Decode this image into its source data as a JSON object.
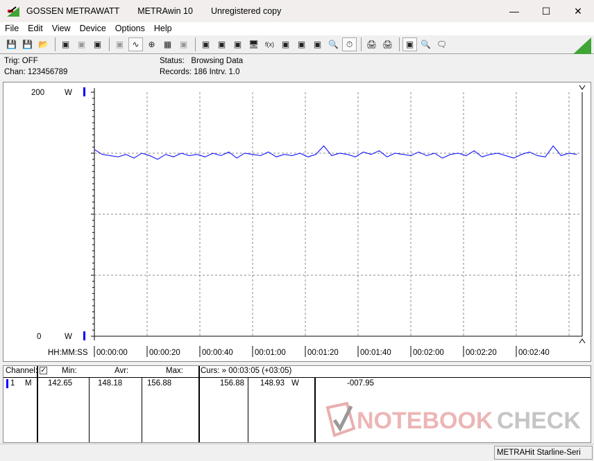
{
  "titlebar": {
    "brand": "GOSSEN METRAWATT",
    "app": "METRAwin 10",
    "license": "Unregistered copy"
  },
  "menu": [
    "File",
    "Edit",
    "View",
    "Device",
    "Options",
    "Help"
  ],
  "toolbar_icons": [
    "save-icon",
    "save-as-icon",
    "open-folder-icon",
    "device-read-icon",
    "device-read-disabled-icon",
    "device-memory-icon",
    "display-icon",
    "waveform-icon",
    "crosshair-icon",
    "table-icon",
    "bars-icon",
    "export-icon",
    "import-icon",
    "settings-icon",
    "monitor-icon",
    "function-icon",
    "device-icon",
    "trigger-icon",
    "signal-icon",
    "search-icon",
    "timer-icon",
    "print-icon",
    "print-preview-icon",
    "zoom-wave-icon",
    "zoom-icon",
    "comment-icon"
  ],
  "info": {
    "trig": "Trig: OFF",
    "chan": "Chan:  123456789",
    "status_label": "Status:",
    "status_value": "Browsing Data",
    "records": "Records: 186  Intrv. 1.0"
  },
  "chart_data": {
    "type": "line",
    "ylim": [
      0,
      200
    ],
    "yunit": "W",
    "ytick_labels": [
      "200",
      "0"
    ],
    "xlabel": "HH:MM:SS",
    "xtick_labels": [
      "00:00:00",
      "00:00:20",
      "00:00:40",
      "00:01:00",
      "00:01:20",
      "00:01:40",
      "00:02:00",
      "00:02:20",
      "00:02:40"
    ],
    "xlim_seconds": [
      0,
      185
    ],
    "grid": true,
    "line_color": "#0000ff",
    "series": [
      {
        "x_step_seconds": 3,
        "values": [
          153,
          149,
          148,
          147,
          149,
          146,
          150,
          148,
          145,
          149,
          147,
          150,
          148,
          149,
          147,
          150,
          148,
          151,
          146,
          150,
          149,
          148,
          151,
          147,
          149,
          148,
          150,
          147,
          149,
          156,
          148,
          150,
          149,
          147,
          151,
          149,
          152,
          147,
          150,
          149,
          148,
          151,
          148,
          150,
          146,
          149,
          150,
          148,
          152,
          147,
          149,
          150,
          148,
          146,
          149,
          151,
          148,
          147,
          156,
          148,
          150,
          149
        ]
      }
    ]
  },
  "table": {
    "headers": {
      "channel": "Channel:",
      "min": "Min:",
      "avr": "Avr:",
      "max": "Max:",
      "curs": "Curs: » 00:03:05 (+03:05)"
    },
    "row": {
      "num": "1",
      "type": "M",
      "min": "142.65",
      "avr": "148.18",
      "max": "156.88",
      "curs_val": "156.88",
      "val2": "148.93",
      "unit": "W",
      "diff": "-007.95"
    }
  },
  "statusbar": "METRAHit Starline-Seri",
  "watermark": "NOTEBOOKCHECK"
}
